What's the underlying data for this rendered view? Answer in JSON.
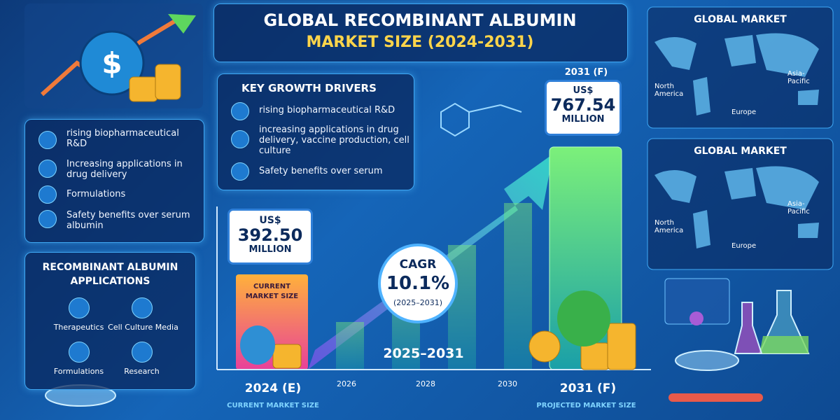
{
  "header": {
    "title_line1": "GLOBAL RECOMBINANT ALBUMIN",
    "title_line2": "MARKET SIZE (2024-2031)"
  },
  "left_drivers": [
    "rising biopharmaceutical R&D",
    "Increasing applications in drug delivery",
    "Formulations",
    "Safety benefits over serum albumin"
  ],
  "applications": {
    "title": "RECOMBINANT ALBUMIN APPLICATIONS",
    "items": [
      "Therapeutics",
      "Cell Culture Media",
      "Formulations",
      "Research"
    ]
  },
  "key_drivers": {
    "title": "KEY GROWTH DRIVERS",
    "items": [
      "rising biopharmaceutical R&D",
      "increasing applications in drug delivery, vaccine production, cell culture",
      "Safety benefits over serum"
    ]
  },
  "current": {
    "currency": "US$",
    "value": "392.50",
    "unit": "MILLION",
    "bar_label": "CURRENT MARKET SIZE",
    "year": "2024 (E)",
    "caption": "CURRENT MARKET SIZE"
  },
  "projected": {
    "year_top": "2031 (F)",
    "currency": "US$",
    "value": "767.54",
    "unit": "MILLION",
    "year": "2031 (F)",
    "caption": "PROJECTED MARKET SIZE"
  },
  "cagr": {
    "label": "CAGR",
    "value": "10.1%",
    "period": "(2025–2031)"
  },
  "period": "2025–2031",
  "axis_labels": [
    "2026",
    "2028",
    "2030"
  ],
  "global_market": [
    {
      "title": "GLOBAL MARKET",
      "regions": [
        "North America",
        "Europe",
        "Asia-Pacific"
      ]
    },
    {
      "title": "GLOBAL MARKET",
      "regions": [
        "North America",
        "Europe",
        "Asia-Pacific"
      ]
    }
  ]
}
